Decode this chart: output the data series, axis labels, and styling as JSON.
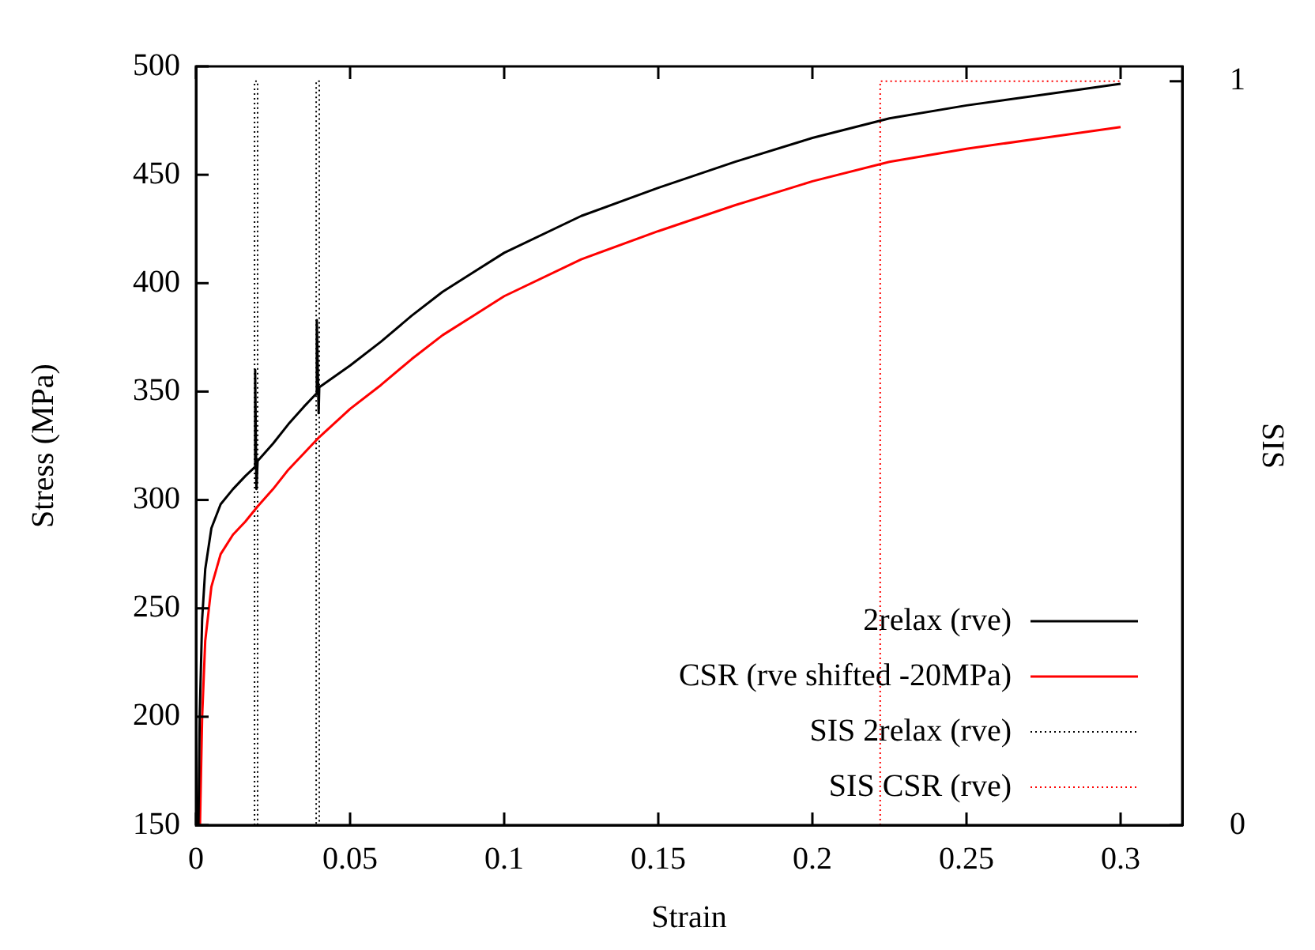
{
  "chart_data": {
    "type": "line",
    "xlabel": "Strain",
    "ylabel": "Stress (MPa)",
    "y2label": "SIS",
    "xlim": [
      0,
      0.32
    ],
    "xticks": [
      0,
      0.05,
      0.1,
      0.15,
      0.2,
      0.25,
      0.3
    ],
    "ylim": [
      150,
      500
    ],
    "yticks": [
      150,
      200,
      250,
      300,
      350,
      400,
      450,
      500
    ],
    "y2lim": [
      0,
      1.02
    ],
    "y2ticks": [
      0,
      1
    ],
    "grid": false,
    "legend": "bottom right",
    "marker": "none",
    "series": [
      {
        "name": "2relax (rve)",
        "color": "#000000",
        "line_style": "solid",
        "x": [
          0.0008,
          0.0012,
          0.002,
          0.003,
          0.005,
          0.008,
          0.012,
          0.016,
          0.019,
          0.0192,
          0.0196,
          0.02,
          0.025,
          0.03,
          0.035,
          0.039,
          0.0392,
          0.0398,
          0.04,
          0.05,
          0.06,
          0.07,
          0.08,
          0.09,
          0.1,
          0.125,
          0.15,
          0.175,
          0.2,
          0.225,
          0.25,
          0.275,
          0.3
        ],
        "values": [
          150,
          200,
          245,
          268,
          287,
          298,
          305,
          311,
          315,
          360,
          305,
          318,
          326,
          335,
          343,
          349,
          383,
          340,
          352,
          362,
          373,
          385,
          396,
          405,
          414,
          431,
          444,
          456,
          467,
          476,
          482,
          487,
          492
        ]
      },
      {
        "name": "CSR (rve shifted -20MPa)",
        "color": "#ff0000",
        "line_style": "solid",
        "x": [
          0.0013,
          0.002,
          0.003,
          0.005,
          0.008,
          0.012,
          0.016,
          0.02,
          0.025,
          0.03,
          0.04,
          0.05,
          0.06,
          0.07,
          0.08,
          0.09,
          0.1,
          0.125,
          0.15,
          0.175,
          0.2,
          0.225,
          0.25,
          0.275,
          0.3
        ],
        "values": [
          150,
          200,
          235,
          260,
          275,
          284,
          290,
          297,
          305,
          314,
          329,
          342,
          353,
          365,
          376,
          385,
          394,
          411,
          424,
          436,
          447,
          456,
          462,
          467,
          472
        ]
      },
      {
        "name": "SIS 2relax (rve)",
        "color": "#000000",
        "line_style": "dotted",
        "axis": "y2",
        "x": [
          0.019,
          0.019,
          0.02,
          0.02,
          0.039,
          0.039,
          0.04,
          0.04
        ],
        "values": [
          0,
          1,
          1,
          0,
          0,
          1,
          1,
          0
        ]
      },
      {
        "name": "SIS CSR (rve)",
        "color": "#ff0000",
        "line_style": "dotted",
        "axis": "y2",
        "x": [
          0.222,
          0.222,
          0.3
        ],
        "values": [
          0,
          1,
          1
        ]
      }
    ]
  }
}
